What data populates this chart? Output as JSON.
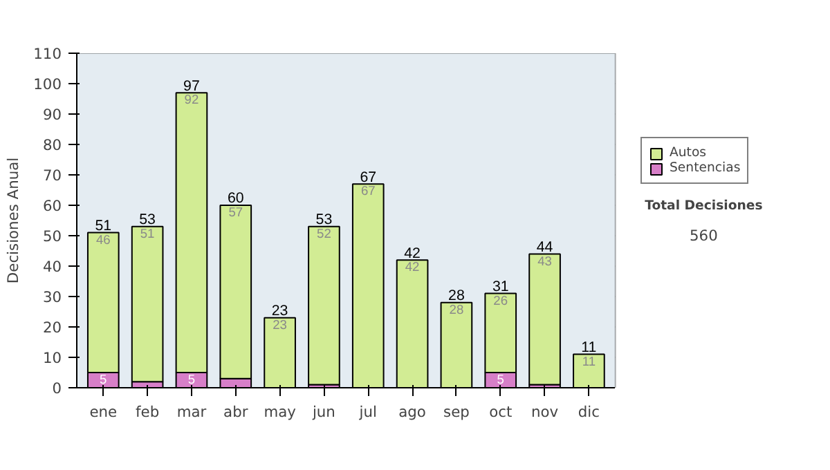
{
  "chart_data": {
    "type": "bar",
    "stacked": true,
    "ylabel": "Decisiones Anual",
    "categories": [
      "ene",
      "feb",
      "mar",
      "abr",
      "may",
      "jun",
      "jul",
      "ago",
      "sep",
      "oct",
      "nov",
      "dic"
    ],
    "series": [
      {
        "name": "Sentencias",
        "color": "#d77fc8",
        "values": [
          5,
          2,
          5,
          3,
          0,
          1,
          0,
          0,
          0,
          5,
          1,
          0
        ],
        "value_labels": [
          "5",
          null,
          "5",
          null,
          null,
          null,
          null,
          null,
          null,
          "5",
          null,
          null
        ]
      },
      {
        "name": "Autos",
        "color": "#d2ec94",
        "values": [
          46,
          51,
          92,
          57,
          23,
          52,
          67,
          42,
          28,
          26,
          43,
          11
        ],
        "value_labels": [
          "46",
          "51",
          "92",
          "57",
          "23",
          "52",
          "67",
          "42",
          "28",
          "26",
          "43",
          "11"
        ]
      }
    ],
    "totals": [
      "51",
      "53",
      "97",
      "60",
      "23",
      "53",
      "67",
      "42",
      "28",
      "31",
      "44",
      "11"
    ],
    "ylim": [
      0,
      110
    ],
    "yticks": [
      0,
      10,
      20,
      30,
      40,
      50,
      60,
      70,
      80,
      90,
      100,
      110
    ],
    "grid": "y",
    "legend": "right",
    "annotations": [
      "Total Decisiones",
      "560"
    ]
  }
}
